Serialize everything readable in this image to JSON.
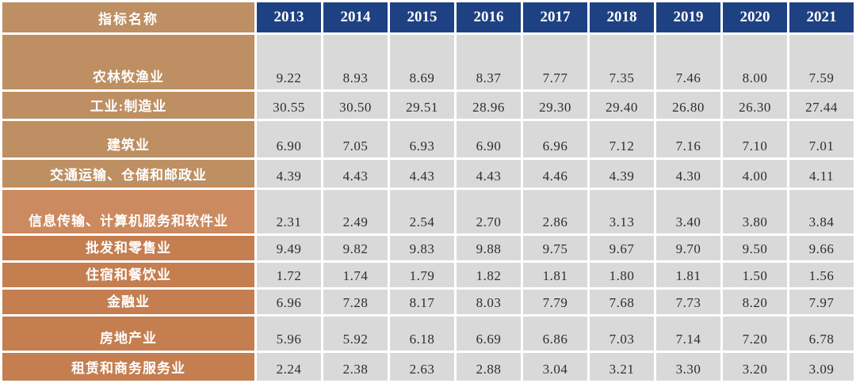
{
  "table": {
    "header": {
      "label": "指标名称",
      "years": [
        "2013",
        "2014",
        "2015",
        "2016",
        "2017",
        "2018",
        "2019",
        "2020",
        "2021"
      ]
    },
    "rows": [
      {
        "name": "农林牧渔业",
        "tone": "tan",
        "values": [
          "9.22",
          "8.93",
          "8.69",
          "8.37",
          "7.77",
          "7.35",
          "7.46",
          "8.00",
          "7.59"
        ]
      },
      {
        "name": "工业:制造业",
        "tone": "tan",
        "values": [
          "30.55",
          "30.50",
          "29.51",
          "28.96",
          "29.30",
          "29.40",
          "26.80",
          "26.30",
          "27.44"
        ]
      },
      {
        "name": "建筑业",
        "tone": "tan",
        "values": [
          "6.90",
          "7.05",
          "6.93",
          "6.90",
          "6.96",
          "7.12",
          "7.16",
          "7.10",
          "7.01"
        ]
      },
      {
        "name": "交通运输、仓储和邮政业",
        "tone": "tan",
        "values": [
          "4.39",
          "4.43",
          "4.43",
          "4.43",
          "4.46",
          "4.39",
          "4.30",
          "4.00",
          "4.11"
        ]
      },
      {
        "name": "信息传输、计算机服务和软件业",
        "tone": "light",
        "values": [
          "2.31",
          "2.49",
          "2.54",
          "2.70",
          "2.86",
          "3.13",
          "3.40",
          "3.80",
          "3.84"
        ]
      },
      {
        "name": "批发和零售业",
        "tone": "dark",
        "values": [
          "9.49",
          "9.82",
          "9.83",
          "9.88",
          "9.75",
          "9.67",
          "9.70",
          "9.50",
          "9.66"
        ]
      },
      {
        "name": "住宿和餐饮业",
        "tone": "dark",
        "values": [
          "1.72",
          "1.74",
          "1.79",
          "1.82",
          "1.81",
          "1.80",
          "1.81",
          "1.50",
          "1.56"
        ]
      },
      {
        "name": "金融业",
        "tone": "dark",
        "values": [
          "6.96",
          "7.28",
          "8.17",
          "8.03",
          "7.79",
          "7.68",
          "7.73",
          "8.20",
          "7.97"
        ]
      },
      {
        "name": "房地产业",
        "tone": "dark",
        "values": [
          "5.96",
          "5.92",
          "6.18",
          "6.69",
          "6.86",
          "7.03",
          "7.14",
          "7.20",
          "6.78"
        ]
      },
      {
        "name": "租赁和商务服务业",
        "tone": "dark",
        "values": [
          "2.24",
          "2.38",
          "2.63",
          "2.88",
          "3.04",
          "3.21",
          "3.30",
          "3.20",
          "3.09"
        ]
      }
    ]
  },
  "colors": {
    "header_blue": "#1e4184",
    "tan": "#bd8f62",
    "light_orange": "#cb8a5f",
    "dark_orange": "#c47e50",
    "cell_gray": "#d9d9d9",
    "grid_white": "#ffffff",
    "value_text": "#2e2e2e",
    "header_text": "#ffffff"
  },
  "chart_data": {
    "type": "table",
    "title": "",
    "col_header": "指标名称",
    "categories": [
      "2013",
      "2014",
      "2015",
      "2016",
      "2017",
      "2018",
      "2019",
      "2020",
      "2021"
    ],
    "series": [
      {
        "name": "农林牧渔业",
        "values": [
          9.22,
          8.93,
          8.69,
          8.37,
          7.77,
          7.35,
          7.46,
          8.0,
          7.59
        ]
      },
      {
        "name": "工业:制造业",
        "values": [
          30.55,
          30.5,
          29.51,
          28.96,
          29.3,
          29.4,
          26.8,
          26.3,
          27.44
        ]
      },
      {
        "name": "建筑业",
        "values": [
          6.9,
          7.05,
          6.93,
          6.9,
          6.96,
          7.12,
          7.16,
          7.1,
          7.01
        ]
      },
      {
        "name": "交通运输、仓储和邮政业",
        "values": [
          4.39,
          4.43,
          4.43,
          4.43,
          4.46,
          4.39,
          4.3,
          4.0,
          4.11
        ]
      },
      {
        "name": "信息传输、计算机服务和软件业",
        "values": [
          2.31,
          2.49,
          2.54,
          2.7,
          2.86,
          3.13,
          3.4,
          3.8,
          3.84
        ]
      },
      {
        "name": "批发和零售业",
        "values": [
          9.49,
          9.82,
          9.83,
          9.88,
          9.75,
          9.67,
          9.7,
          9.5,
          9.66
        ]
      },
      {
        "name": "住宿和餐饮业",
        "values": [
          1.72,
          1.74,
          1.79,
          1.82,
          1.81,
          1.8,
          1.81,
          1.5,
          1.56
        ]
      },
      {
        "name": "金融业",
        "values": [
          6.96,
          7.28,
          8.17,
          8.03,
          7.79,
          7.68,
          7.73,
          8.2,
          7.97
        ]
      },
      {
        "name": "房地产业",
        "values": [
          5.96,
          5.92,
          6.18,
          6.69,
          6.86,
          7.03,
          7.14,
          7.2,
          6.78
        ]
      },
      {
        "name": "租赁和商务服务业",
        "values": [
          2.24,
          2.38,
          2.63,
          2.88,
          3.04,
          3.21,
          3.3,
          3.2,
          3.09
        ]
      }
    ]
  }
}
